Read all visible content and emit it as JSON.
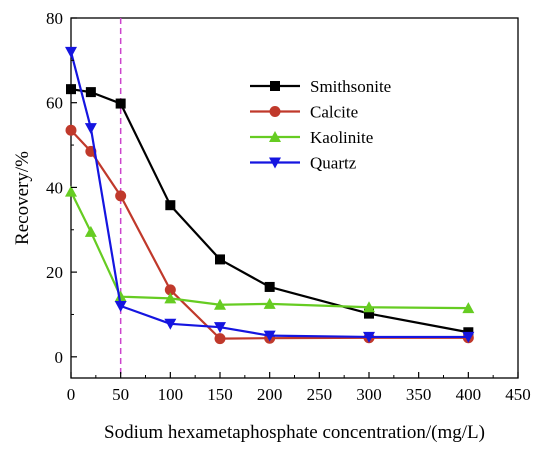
{
  "chart_data": {
    "type": "line",
    "title": "",
    "xlabel": "Sodium hexametaphosphate concentration/(mg/L)",
    "ylabel": "Recovery/%",
    "xlim": [
      0,
      450
    ],
    "ylim": [
      -5,
      80
    ],
    "x_ticks": [
      0,
      50,
      100,
      150,
      200,
      250,
      300,
      350,
      400,
      450
    ],
    "y_ticks": [
      0,
      20,
      40,
      60,
      80
    ],
    "x_tick_labels": [
      "0",
      "50",
      "100",
      "150",
      "200",
      "250",
      "300",
      "350",
      "400",
      "450"
    ],
    "y_tick_labels": [
      "0",
      "20",
      "40",
      "60",
      "80"
    ],
    "grid": false,
    "legend_position": "upper-right",
    "reference_line": {
      "x": 50,
      "color": "#cc44cc",
      "style": "dashed"
    },
    "series": [
      {
        "name": "Smithsonite",
        "color": "#000000",
        "marker": "square",
        "x": [
          0,
          20,
          50,
          100,
          150,
          200,
          300,
          400
        ],
        "y": [
          63.2,
          62.5,
          59.8,
          35.8,
          23.0,
          16.5,
          10.2,
          5.8
        ]
      },
      {
        "name": "Calcite",
        "color": "#c0392b",
        "marker": "circle",
        "x": [
          0,
          20,
          50,
          100,
          150,
          200,
          300,
          400
        ],
        "y": [
          53.5,
          48.5,
          38.0,
          15.8,
          4.3,
          4.4,
          4.5,
          4.5
        ]
      },
      {
        "name": "Kaolinite",
        "color": "#66cc22",
        "marker": "triangle-up",
        "x": [
          0,
          20,
          50,
          100,
          150,
          200,
          300,
          400
        ],
        "y": [
          39.0,
          29.5,
          14.2,
          13.8,
          12.3,
          12.5,
          11.7,
          11.5
        ]
      },
      {
        "name": "Quartz",
        "color": "#1515e0",
        "marker": "triangle-down",
        "x": [
          0,
          20,
          50,
          100,
          150,
          200,
          300,
          400
        ],
        "y": [
          72.0,
          54.0,
          12.0,
          7.8,
          7.0,
          5.0,
          4.7,
          4.7
        ]
      }
    ]
  }
}
